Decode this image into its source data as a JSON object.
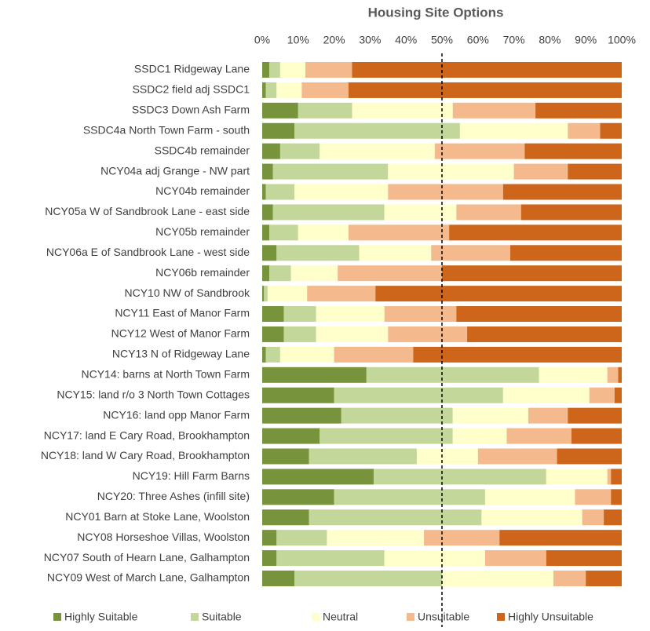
{
  "chart_data": {
    "type": "stacked_bar_horizontal",
    "title": "Housing Site Options",
    "categories": [
      "SSDC1 Ridgeway Lane",
      "SSDC2 field  adj SSDC1",
      "SSDC3 Down Ash Farm",
      "SSDC4a North Town Farm - south",
      "SSDC4b remainder",
      "NCY04a adj Grange - NW part",
      "NCY04b remainder",
      "NCY05a W of Sandbrook Lane - east side",
      "NCY05b remainder",
      "NCY06a E of Sandbrook Lane - west side",
      "NCY06b remainder",
      "NCY10 NW of Sandbrook",
      "NCY11 East of Manor Farm",
      "NCY12 West of Manor Farm",
      "NCY13 N of Ridgeway Lane",
      "NCY14: barns at North Town Farm",
      "NCY15: land r/o 3 North Town Cottages",
      "NCY16: land opp Manor Farm",
      "NCY17: land E Cary Road, Brookhampton",
      "NCY18: land W Cary Road, Brookhampton",
      "NCY19: Hill Farm Barns",
      "NCY20: Three Ashes (infill site)",
      "NCY01 Barn at Stoke Lane, Woolston",
      "NCY08 Horseshoe Villas, Woolston",
      "NCY07 South of Hearn Lane, Galhampton",
      "NCY09 West of March Lane, Galhampton"
    ],
    "series": [
      {
        "name": "Highly Suitable",
        "color": "#77933c",
        "values": [
          2,
          1,
          10,
          9,
          5,
          3,
          1,
          3,
          2,
          4,
          2,
          0.5,
          6,
          6,
          1,
          29,
          20,
          22,
          16,
          13,
          31,
          20,
          13,
          4,
          4,
          9
        ]
      },
      {
        "name": "Suitable",
        "color": "#c4d79b",
        "values": [
          3,
          3,
          15,
          46,
          11,
          32,
          8,
          31,
          8,
          23,
          6,
          1,
          9,
          9,
          4,
          48,
          47,
          31,
          37,
          30,
          48,
          42,
          48,
          14,
          30,
          41
        ]
      },
      {
        "name": "Neutral",
        "color": "#ffffcc",
        "values": [
          7,
          7,
          28,
          30,
          32,
          35,
          26,
          20,
          14,
          20,
          13,
          11,
          19,
          20,
          15,
          19,
          24,
          21,
          15,
          17,
          17,
          25,
          28,
          27,
          28,
          31
        ]
      },
      {
        "name": "Unsuitable",
        "color": "#f4b98c",
        "values": [
          13,
          13,
          23,
          9,
          25,
          15,
          32,
          18,
          28,
          22,
          29,
          19,
          20,
          22,
          22,
          3,
          7,
          11,
          18,
          22,
          1,
          10,
          6,
          21,
          17,
          9
        ]
      },
      {
        "name": "Highly Unsuitable",
        "color": "#cd651a",
        "values": [
          75,
          76,
          24,
          6,
          27,
          15,
          33,
          28,
          48,
          31,
          50,
          68.5,
          46,
          43,
          58,
          1,
          2,
          15,
          14,
          18,
          3,
          3,
          5,
          34,
          21,
          10
        ]
      }
    ],
    "xlim": [
      0,
      100
    ],
    "xticks": [
      {
        "value": 0,
        "label": "0%"
      },
      {
        "value": 10,
        "label": "10%"
      },
      {
        "value": 20,
        "label": "20%"
      },
      {
        "value": 30,
        "label": "30%"
      },
      {
        "value": 40,
        "label": "40%"
      },
      {
        "value": 50,
        "label": "50%"
      },
      {
        "value": 60,
        "label": "60%"
      },
      {
        "value": 70,
        "label": "70%"
      },
      {
        "value": 80,
        "label": "80%"
      },
      {
        "value": 90,
        "label": "90%"
      },
      {
        "value": 100,
        "label": "100%"
      }
    ],
    "reference_line": 50,
    "legend": "bottom"
  }
}
